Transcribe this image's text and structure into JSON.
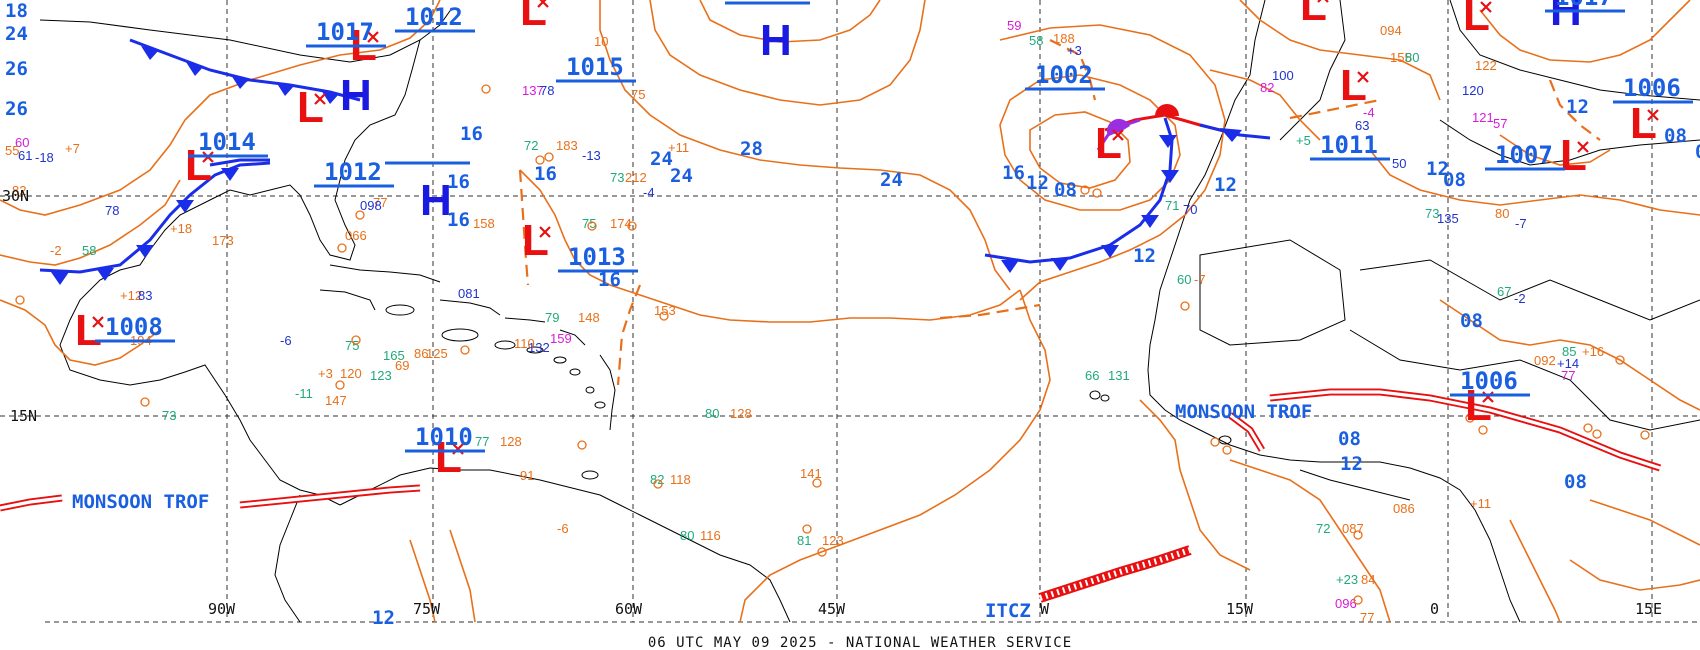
{
  "footer": "06 UTC MAY 09 2025 - NATIONAL WEATHER SERVICE",
  "colors": {
    "isobar": "#e8701a",
    "low": "#e81010",
    "high": "#1a1ae0",
    "label": "#1a5fe0",
    "cold_front": "#1a2de8",
    "warm_front": "#e81010",
    "occluded": "#9b2ee0",
    "trough": "#e8701a",
    "grid": "#333333",
    "coast": "#000000"
  },
  "lat_labels": [
    "30N",
    "15N"
  ],
  "lon_labels": [
    "90W",
    "75W",
    "60W",
    "45W",
    "W",
    "15W",
    "0",
    "15E"
  ],
  "pressure_centers": [
    {
      "type": "L",
      "value": "1012"
    },
    {
      "type": "L",
      "value": "1015"
    },
    {
      "type": "H",
      "value": "1017"
    },
    {
      "type": "L",
      "value": "1014"
    },
    {
      "type": "L",
      "value": "1012"
    },
    {
      "type": "H",
      "value": ""
    },
    {
      "type": "H",
      "value": ""
    },
    {
      "type": "L",
      "value": "1013"
    },
    {
      "type": "L",
      "value": "1008"
    },
    {
      "type": "L",
      "value": "1010"
    },
    {
      "type": "L",
      "value": "1002"
    },
    {
      "type": "L",
      "value": "1011"
    },
    {
      "type": "L",
      "value": "1007"
    },
    {
      "type": "L",
      "value": "1006"
    },
    {
      "type": "H",
      "value": "1017"
    },
    {
      "type": "L",
      "value": "1006"
    },
    {
      "type": "L",
      "value": ""
    },
    {
      "type": "L",
      "value": ""
    }
  ],
  "isobar_labels": [
    "24",
    "26",
    "26",
    "16",
    "16",
    "16",
    "16",
    "16",
    "24",
    "24",
    "28",
    "24",
    "16",
    "12",
    "08",
    "12",
    "12",
    "12",
    "08",
    "12",
    "08",
    "08",
    "08",
    "12",
    "08",
    "08",
    "12",
    "18"
  ],
  "feature_labels": [
    "MONSOON TROF",
    "MONSOON TROF",
    "ITCZ"
  ],
  "station_readouts": [
    "59",
    "58",
    "188",
    "+3",
    "72",
    "183",
    "-13",
    "73",
    "212",
    "-4",
    "75",
    "174",
    "158",
    "153",
    "79",
    "148",
    "80",
    "128",
    "141",
    "81",
    "123",
    "77",
    "128",
    "82",
    "118",
    "80",
    "116",
    "75",
    "120",
    "86",
    "125",
    "123",
    "137",
    "78",
    "60",
    "-7",
    "66",
    "131",
    "71",
    "70",
    "73",
    "135",
    "80",
    "-7",
    "67",
    "-2",
    "85",
    "+16",
    "092",
    "+14",
    "77",
    "+11",
    "72",
    "087",
    "086",
    "+23",
    "84",
    "096",
    "77",
    "094",
    "100",
    "82",
    "155",
    "80",
    "120",
    "122",
    "-4",
    "50",
    "121",
    "57",
    "63",
    "+5",
    "60",
    "-18",
    "+7",
    "61",
    "55",
    "-2",
    "58",
    "+12",
    "194",
    "+18",
    "173",
    "066",
    "77",
    "098",
    "081",
    "110",
    "132",
    "159",
    "165",
    "+3",
    "-11",
    "147",
    "-6",
    "69",
    "78",
    "82",
    "73",
    "83",
    "91",
    "-6",
    "10",
    "75",
    "+11"
  ]
}
